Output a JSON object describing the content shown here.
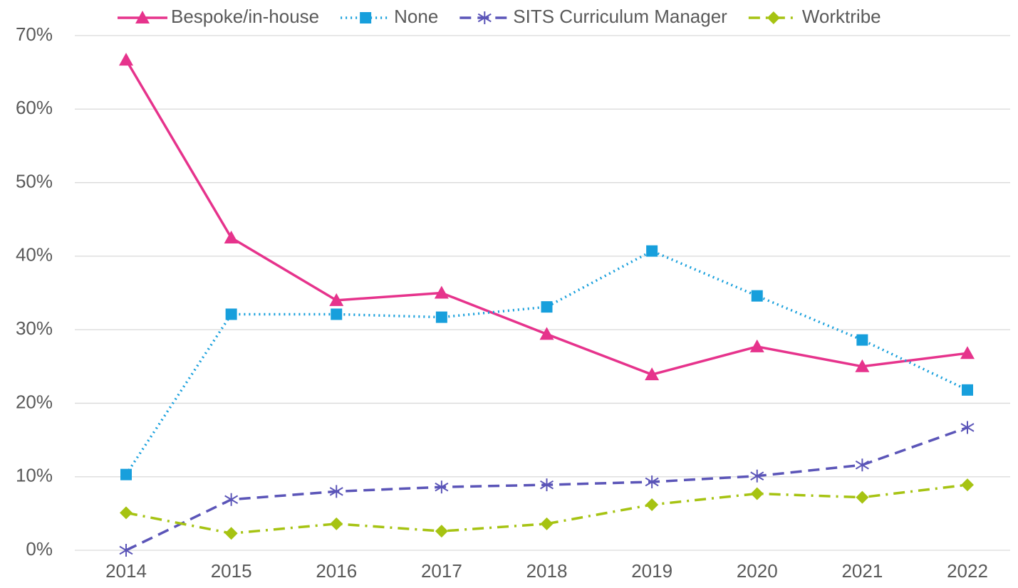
{
  "chart_data": {
    "type": "line",
    "categories": [
      "2014",
      "2015",
      "2016",
      "2017",
      "2018",
      "2019",
      "2020",
      "2021",
      "2022"
    ],
    "series": [
      {
        "name": "Bespoke/in-house",
        "color": "#e6338c",
        "line_style": "solid",
        "marker": "triangle",
        "values": [
          66.7,
          42.5,
          34.0,
          35.0,
          29.4,
          23.9,
          27.7,
          25.0,
          26.8
        ]
      },
      {
        "name": "None",
        "color": "#179fdc",
        "line_style": "dotted",
        "marker": "square",
        "values": [
          10.3,
          32.1,
          32.1,
          31.7,
          33.1,
          40.7,
          34.6,
          28.6,
          21.8
        ]
      },
      {
        "name": "SITS Curriculum Manager",
        "color": "#5b55b8",
        "line_style": "dashed",
        "marker": "asterisk",
        "values": [
          0,
          6.9,
          8.0,
          8.6,
          8.9,
          9.3,
          10.1,
          11.6,
          16.7
        ]
      },
      {
        "name": "Worktribe",
        "color": "#a6c312",
        "line_style": "dashdot",
        "marker": "diamond",
        "values": [
          5.1,
          2.3,
          3.6,
          2.6,
          3.6,
          6.2,
          7.7,
          7.2,
          8.9
        ]
      }
    ],
    "ylim": [
      0,
      70
    ],
    "yticks": [
      {
        "value": 0,
        "label": "0%"
      },
      {
        "value": 10,
        "label": "10%"
      },
      {
        "value": 20,
        "label": "20%"
      },
      {
        "value": 30,
        "label": "30%"
      },
      {
        "value": 40,
        "label": "40%"
      },
      {
        "value": 50,
        "label": "50%"
      },
      {
        "value": 60,
        "label": "60%"
      },
      {
        "value": 70,
        "label": "70%"
      }
    ],
    "grid": true,
    "legend": "top"
  }
}
